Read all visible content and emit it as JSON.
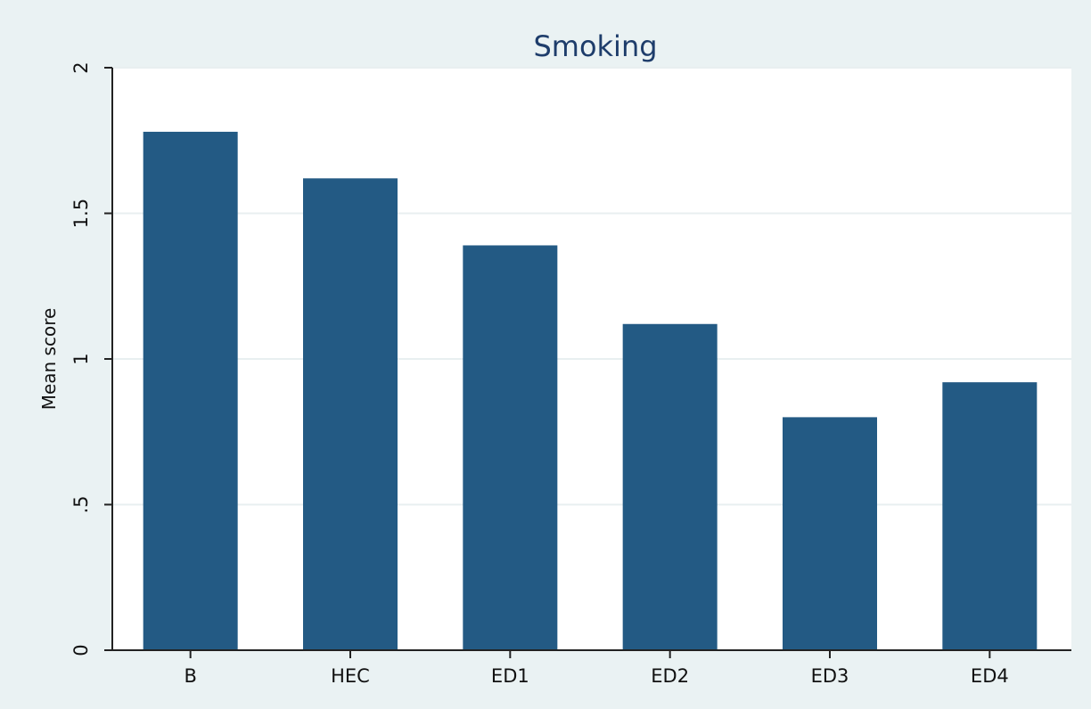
{
  "chart_data": {
    "type": "bar",
    "title": "Smoking",
    "xlabel": "",
    "ylabel": "Mean score",
    "categories": [
      "B",
      "HEC",
      "ED1",
      "ED2",
      "ED3",
      "ED4"
    ],
    "values": [
      1.78,
      1.62,
      1.39,
      1.12,
      0.8,
      0.92
    ],
    "ylim": [
      0,
      2
    ],
    "yticks": [
      0,
      0.5,
      1,
      1.5,
      2
    ],
    "ytick_labels": [
      "0",
      ".5",
      "1",
      "1.5",
      "2"
    ],
    "grid": true,
    "bar_color": "#235a84",
    "plot_background": "#ffffff",
    "outer_background": "#eaf2f3",
    "title_color": "#1e3d6b"
  }
}
